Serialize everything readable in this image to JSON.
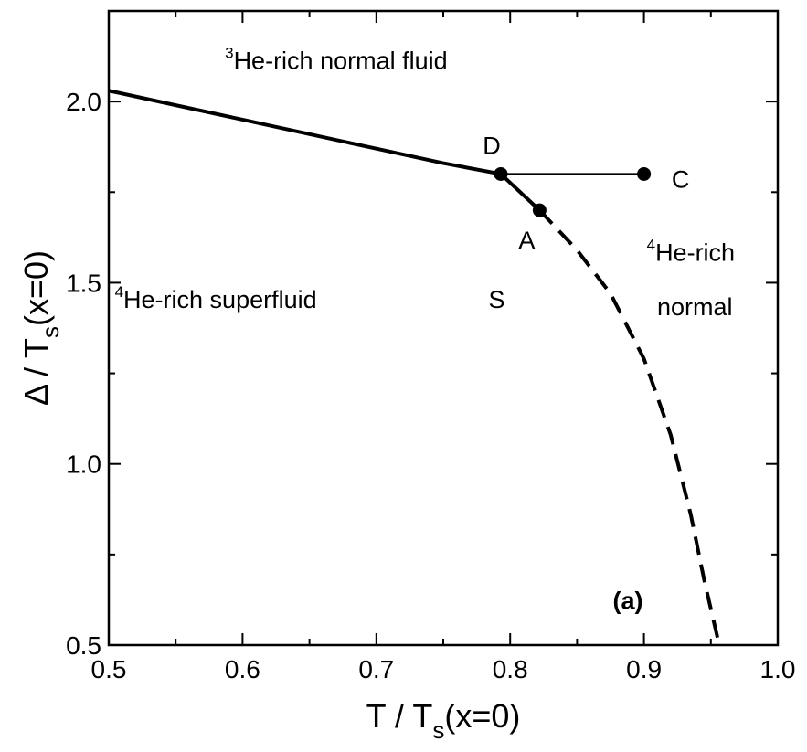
{
  "chart_data": {
    "type": "line",
    "xlim": [
      0.5,
      1.0
    ],
    "ylim": [
      0.5,
      2.25
    ],
    "xticks": [
      "0.5",
      "0.6",
      "0.7",
      "0.8",
      "0.9",
      "1.0"
    ],
    "yticks": [
      "0.5",
      "1.0",
      "1.5",
      "2.0"
    ],
    "xlabel": {
      "main": "T / T",
      "sub": "s",
      "tail": "(x=0)"
    },
    "ylabel": {
      "main": "Δ / T",
      "sub": "s",
      "tail": "(x=0)"
    },
    "grid": false,
    "series": [
      {
        "style": "solid-thick",
        "x": [
          0.5,
          0.55,
          0.6,
          0.65,
          0.7,
          0.75,
          0.793
        ],
        "y": [
          2.03,
          1.99,
          1.95,
          1.91,
          1.87,
          1.83,
          1.8
        ]
      },
      {
        "style": "solid-thick",
        "x": [
          0.793,
          0.822
        ],
        "y": [
          1.8,
          1.7
        ]
      },
      {
        "style": "dashed-thick",
        "x": [
          0.822,
          0.85,
          0.875,
          0.9,
          0.92,
          0.935,
          0.945,
          0.955
        ],
        "y": [
          1.7,
          1.59,
          1.47,
          1.29,
          1.08,
          0.86,
          0.68,
          0.52
        ]
      },
      {
        "style": "solid-thin",
        "x": [
          0.793,
          0.9
        ],
        "y": [
          1.8,
          1.8
        ]
      }
    ],
    "points": [
      {
        "label": "D",
        "x": 0.793,
        "y": 1.8
      },
      {
        "label": "A",
        "x": 0.822,
        "y": 1.7
      },
      {
        "label": "C",
        "x": 0.9,
        "y": 1.8
      }
    ],
    "annotations": [
      {
        "sup": "3",
        "text": "He-rich normal fluid",
        "x": 0.67,
        "y": 2.09
      },
      {
        "sup": "4",
        "text": "He-rich superfluid",
        "x": 0.58,
        "y": 1.43
      },
      {
        "sup": "",
        "text": "S",
        "x": 0.79,
        "y": 1.43
      },
      {
        "sup": "4",
        "text": "He-rich",
        "x": 0.935,
        "y": 1.56
      },
      {
        "sup": "",
        "text": "normal",
        "x": 0.938,
        "y": 1.41
      },
      {
        "sup": "",
        "text": "(a)",
        "x": 0.888,
        "y": 0.6,
        "bold": true
      }
    ]
  }
}
